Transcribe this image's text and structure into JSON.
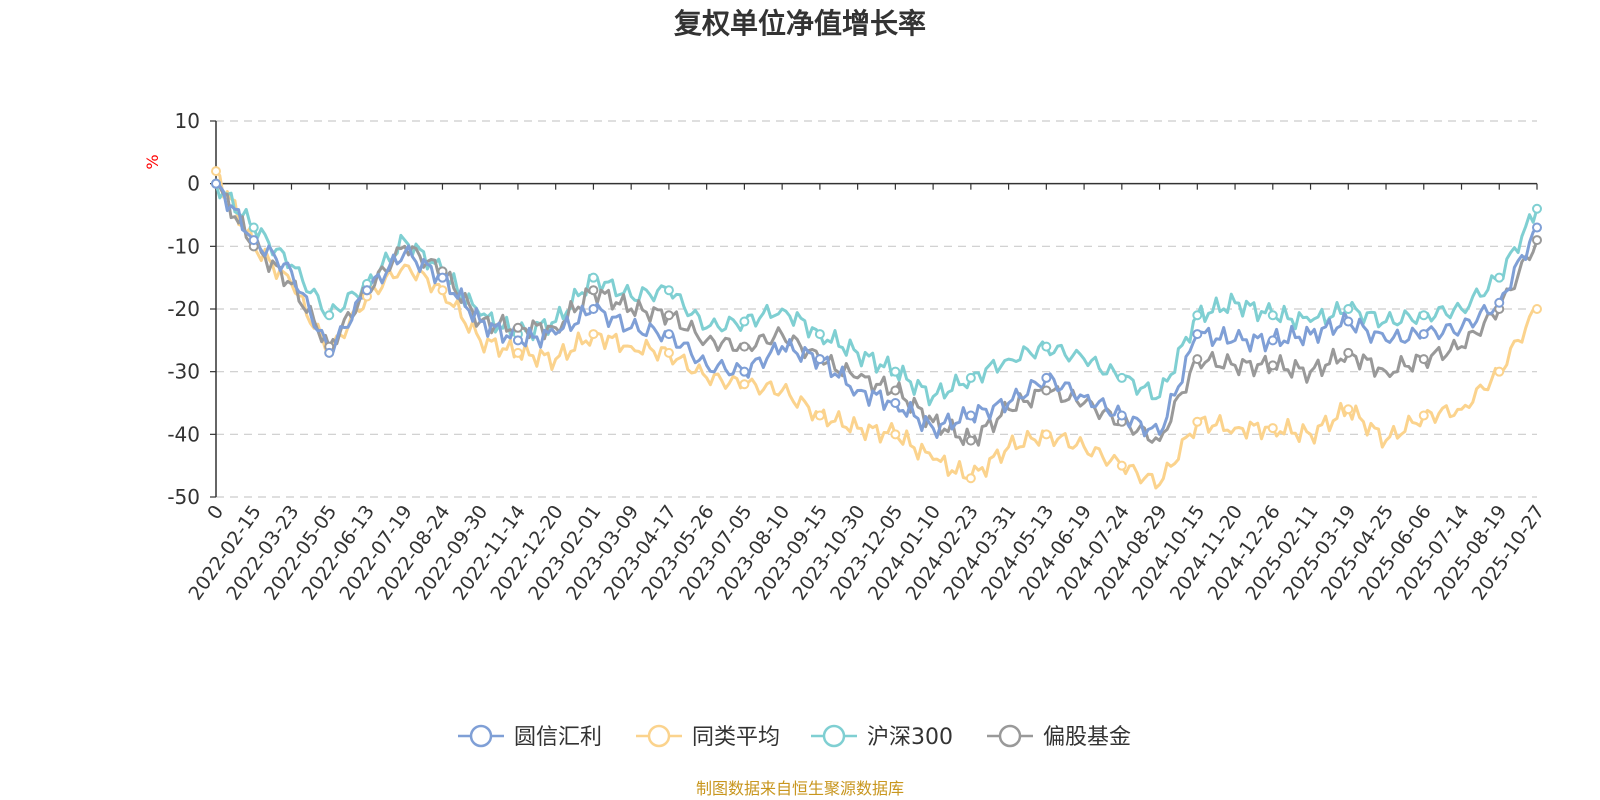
{
  "chart_data": {
    "type": "line",
    "title": "复权单位净值增长率",
    "ylabel": "%",
    "ylim": [
      -50,
      10
    ],
    "yticks": [
      10,
      0,
      -10,
      -20,
      -30,
      -40,
      -50
    ],
    "xlabel": "",
    "grid": true,
    "legend_position": "bottom",
    "categories": [
      "0",
      "2022-02-15",
      "2022-03-23",
      "2022-05-05",
      "2022-06-13",
      "2022-07-19",
      "2022-08-24",
      "2022-09-30",
      "2022-11-14",
      "2022-12-20",
      "2023-02-01",
      "2023-03-09",
      "2023-04-17",
      "2023-05-26",
      "2023-07-05",
      "2023-08-10",
      "2023-09-15",
      "2023-10-30",
      "2023-12-05",
      "2024-01-10",
      "2024-02-23",
      "2024-03-31",
      "2024-05-13",
      "2024-06-19",
      "2024-07-24",
      "2024-08-29",
      "2024-10-15",
      "2024-11-20",
      "2024-12-26",
      "2025-02-11",
      "2025-03-19",
      "2025-04-25",
      "2025-06-06",
      "2025-07-14",
      "2025-08-19",
      "2025-10-27"
    ],
    "series": [
      {
        "name": "圆信汇利",
        "color": "#7f9fd6",
        "values": [
          0,
          -9,
          -14,
          -27,
          -17,
          -11,
          -15,
          -22,
          -25,
          -24,
          -20,
          -23,
          -24,
          -29,
          -30,
          -26,
          -28,
          -33,
          -35,
          -39,
          -37,
          -35,
          -31,
          -34,
          -37,
          -40,
          -24,
          -25,
          -25,
          -24,
          -22,
          -25,
          -24,
          -23,
          -19,
          -7
        ]
      },
      {
        "name": "同类平均",
        "color": "#fbd38d",
        "values": [
          2,
          -10,
          -16,
          -27,
          -18,
          -13,
          -17,
          -25,
          -27,
          -28,
          -24,
          -26,
          -27,
          -31,
          -32,
          -33,
          -37,
          -39,
          -40,
          -44,
          -47,
          -42,
          -40,
          -42,
          -45,
          -48,
          -38,
          -39,
          -39,
          -40,
          -36,
          -41,
          -37,
          -36,
          -30,
          -20
        ]
      },
      {
        "name": "沪深300",
        "color": "#7fcfd2",
        "values": [
          0,
          -7,
          -13,
          -21,
          -16,
          -9,
          -14,
          -21,
          -24,
          -22,
          -15,
          -18,
          -17,
          -23,
          -22,
          -20,
          -24,
          -27,
          -30,
          -34,
          -31,
          -28,
          -26,
          -28,
          -31,
          -34,
          -21,
          -19,
          -21,
          -22,
          -20,
          -22,
          -21,
          -20,
          -15,
          -4
        ]
      },
      {
        "name": "偏股基金",
        "color": "#999999",
        "values": [
          0,
          -10,
          -16,
          -26,
          -17,
          -10,
          -14,
          -22,
          -23,
          -23,
          -17,
          -20,
          -21,
          -25,
          -26,
          -24,
          -28,
          -31,
          -33,
          -38,
          -41,
          -36,
          -33,
          -35,
          -38,
          -41,
          -28,
          -29,
          -29,
          -30,
          -27,
          -30,
          -28,
          -26,
          -20,
          -9
        ]
      }
    ]
  },
  "source_note": "制图数据来自恒生聚源数据库"
}
